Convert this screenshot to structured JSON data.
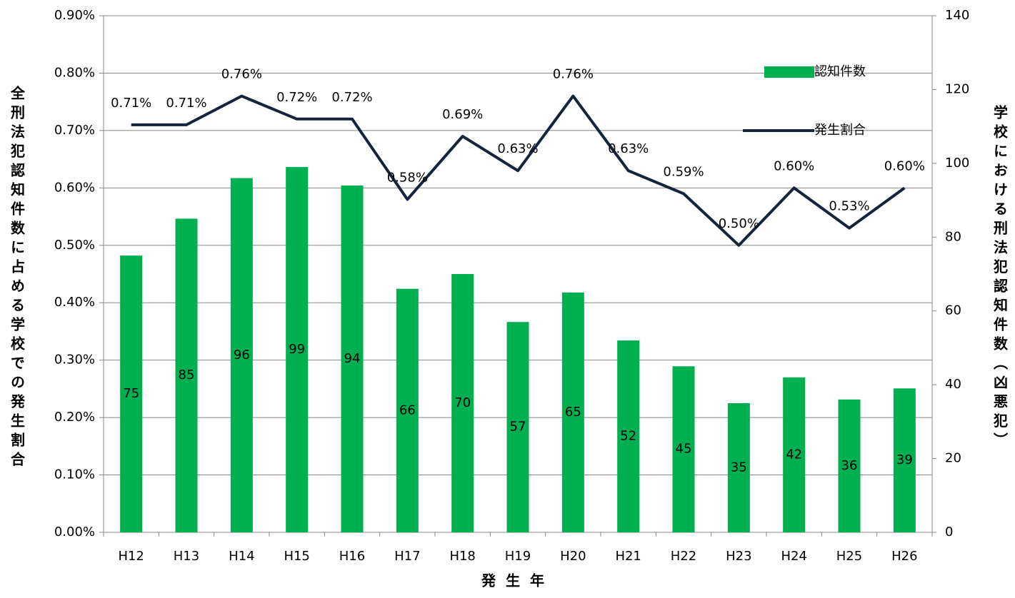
{
  "chart_data": {
    "type": "bar",
    "xlabel": "発生年",
    "ylabel": "全刑法犯認知件数に占める学校での発生割合",
    "y2label": "学校における刑法犯認知件数（凶悪犯）",
    "categories": [
      "H12",
      "H13",
      "H14",
      "H15",
      "H16",
      "H17",
      "H18",
      "H19",
      "H20",
      "H21",
      "H22",
      "H23",
      "H24",
      "H25",
      "H26"
    ],
    "series": [
      {
        "name": "認知件数",
        "type": "bar",
        "axis": "y2",
        "color": "#00b050",
        "values": [
          75,
          85,
          96,
          99,
          94,
          66,
          70,
          57,
          65,
          52,
          45,
          35,
          42,
          36,
          39
        ]
      },
      {
        "name": "発生割合",
        "type": "line",
        "color": "#14243c",
        "values": [
          0.71,
          0.71,
          0.76,
          0.72,
          0.72,
          0.58,
          0.69,
          0.63,
          0.76,
          0.63,
          0.59,
          0.5,
          0.6,
          0.53,
          0.6
        ],
        "value_labels": [
          "0.71%",
          "0.71%",
          "0.76%",
          "0.72%",
          "0.72%",
          "0.58%",
          "0.69%",
          "0.63%",
          "0.76%",
          "0.63%",
          "0.59%",
          "0.50%",
          "0.60%",
          "0.53%",
          "0.60%"
        ]
      }
    ],
    "ylim": [
      0,
      0.9
    ],
    "yticks": [
      {
        "value": 0,
        "label": "0.00%"
      },
      {
        "value": 0.1,
        "label": "0.10%"
      },
      {
        "value": 0.2,
        "label": "0.20%"
      },
      {
        "value": 0.3,
        "label": "0.30%"
      },
      {
        "value": 0.4,
        "label": "0.40%"
      },
      {
        "value": 0.5,
        "label": "0.50%"
      },
      {
        "value": 0.6,
        "label": "0.60%"
      },
      {
        "value": 0.7,
        "label": "0.70%"
      },
      {
        "value": 0.8,
        "label": "0.80%"
      },
      {
        "value": 0.9,
        "label": "0.90%"
      }
    ],
    "y2lim": [
      0,
      140
    ],
    "y2ticks": [
      0,
      20,
      40,
      60,
      80,
      100,
      120,
      140
    ],
    "grid": true,
    "legend": "upper right"
  }
}
